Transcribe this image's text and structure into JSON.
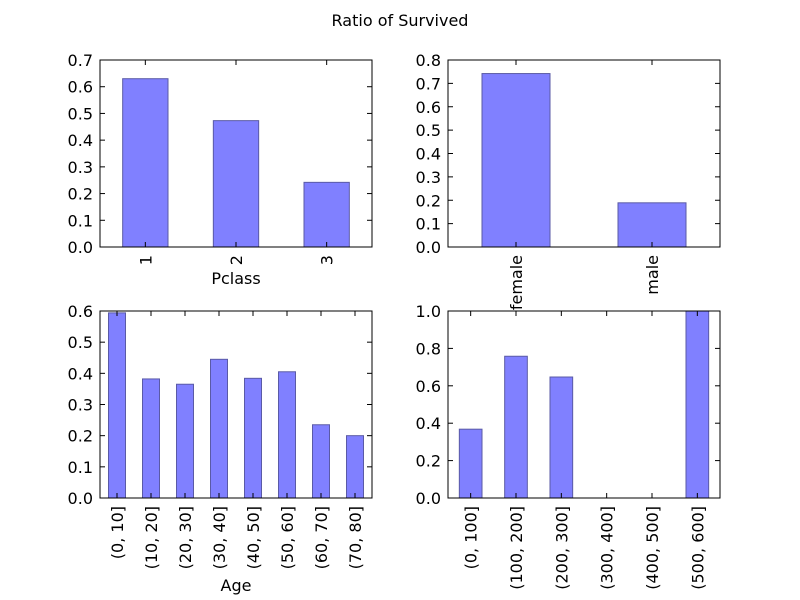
{
  "figure": {
    "suptitle": "Ratio of Survived"
  },
  "style": {
    "bar_fill": "#8080ff",
    "bar_edge": "#5a5aa6",
    "axis_color": "#000000"
  },
  "chart_data": [
    {
      "type": "bar",
      "xlabel": "Pclass",
      "ylabel": "",
      "categories": [
        "1",
        "2",
        "3"
      ],
      "values": [
        0.63,
        0.473,
        0.242
      ],
      "ylim": [
        0,
        0.7
      ],
      "yticks": [
        "0.0",
        "0.1",
        "0.2",
        "0.3",
        "0.4",
        "0.5",
        "0.6",
        "0.7"
      ],
      "grid": false
    },
    {
      "type": "bar",
      "xlabel": "",
      "ylabel": "",
      "categories": [
        "female",
        "male"
      ],
      "values": [
        0.742,
        0.189
      ],
      "ylim": [
        0,
        0.8
      ],
      "yticks": [
        "0.0",
        "0.1",
        "0.2",
        "0.3",
        "0.4",
        "0.5",
        "0.6",
        "0.7",
        "0.8"
      ],
      "grid": false
    },
    {
      "type": "bar",
      "xlabel": "Age",
      "ylabel": "",
      "categories": [
        "(0, 10]",
        "(10, 20]",
        "(20, 30]",
        "(30, 40]",
        "(40, 50]",
        "(50, 60]",
        "(60, 70]",
        "(70, 80]"
      ],
      "values": [
        0.594,
        0.382,
        0.365,
        0.445,
        0.384,
        0.405,
        0.235,
        0.2
      ],
      "ylim": [
        0,
        0.6
      ],
      "yticks": [
        "0.0",
        "0.1",
        "0.2",
        "0.3",
        "0.4",
        "0.5",
        "0.6"
      ],
      "grid": false
    },
    {
      "type": "bar",
      "xlabel": "",
      "ylabel": "",
      "categories": [
        "(0, 100]",
        "(100, 200]",
        "(200, 300]",
        "(300, 400]",
        "(400, 500]",
        "(500, 600]"
      ],
      "values": [
        0.368,
        0.758,
        0.647,
        0,
        0,
        1.0
      ],
      "ylim": [
        0,
        1.0
      ],
      "yticks": [
        "0.0",
        "0.2",
        "0.4",
        "0.6",
        "0.8",
        "1.0"
      ],
      "grid": false
    }
  ]
}
